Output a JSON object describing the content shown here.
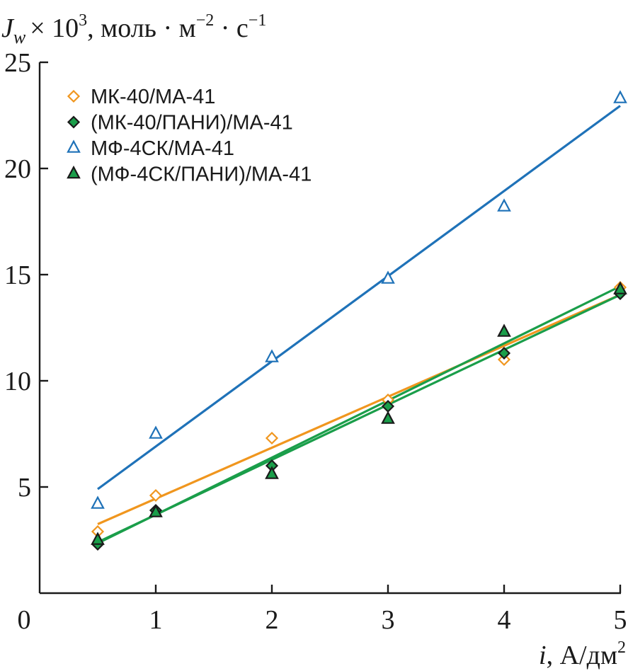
{
  "chart_data": {
    "type": "scatter",
    "y_title": {
      "symbol": "J",
      "subscript": "w",
      "multiplier": "× 10",
      "multiplier_exp": "3",
      "units_a": ", моль · м",
      "units_a_exp": "−2",
      "units_b": " · с",
      "units_b_exp": "−1"
    },
    "x_title": {
      "symbol": "i",
      "units": ", А/дм",
      "units_exp": "2"
    },
    "xlim": [
      0,
      5
    ],
    "ylim": [
      0,
      25
    ],
    "x_ticks": [
      0,
      1,
      2,
      3,
      4,
      5
    ],
    "x_tick_labels": [
      "0",
      "1",
      "2",
      "3",
      "4",
      "5"
    ],
    "y_ticks": [
      5,
      10,
      15,
      20,
      25
    ],
    "y_tick_labels": [
      "5",
      "10",
      "15",
      "20",
      "25"
    ],
    "grid": false,
    "legend_position": "top-left",
    "series": [
      {
        "name": "МК-40/МА-41",
        "marker": "diamond-open",
        "color": "#f0961e",
        "x": [
          0.5,
          1,
          2,
          3,
          4,
          5
        ],
        "y": [
          2.9,
          4.6,
          7.3,
          9.1,
          11.0,
          14.4
        ],
        "fit": {
          "x": [
            0.5,
            5
          ],
          "y": [
            3.25,
            14.05
          ]
        }
      },
      {
        "name": "(МК-40/ПАНИ)/МА-41",
        "marker": "diamond-filled",
        "color": "#1a9e4a",
        "x": [
          0.5,
          1,
          2,
          3,
          4,
          5
        ],
        "y": [
          2.3,
          3.9,
          6.0,
          8.8,
          11.3,
          14.1
        ],
        "fit": {
          "x": [
            0.5,
            5
          ],
          "y": [
            2.4,
            14.05
          ]
        }
      },
      {
        "name": "МФ-4СК/МА-41",
        "marker": "triangle-open",
        "color": "#1f72b8",
        "x": [
          0.5,
          1,
          2,
          3,
          4,
          5
        ],
        "y": [
          4.2,
          7.5,
          11.1,
          14.8,
          18.2,
          23.3
        ],
        "fit": {
          "x": [
            0.5,
            5
          ],
          "y": [
            4.9,
            22.95
          ]
        }
      },
      {
        "name": "(МФ-4СК/ПАНИ)/МА-41",
        "marker": "triangle-filled",
        "color": "#1a9e4a",
        "x": [
          0.5,
          1,
          2,
          3,
          4,
          5
        ],
        "y": [
          2.5,
          3.8,
          5.6,
          8.2,
          12.3,
          14.3
        ],
        "fit": {
          "x": [
            0.5,
            5
          ],
          "y": [
            2.35,
            14.45
          ]
        }
      }
    ]
  }
}
